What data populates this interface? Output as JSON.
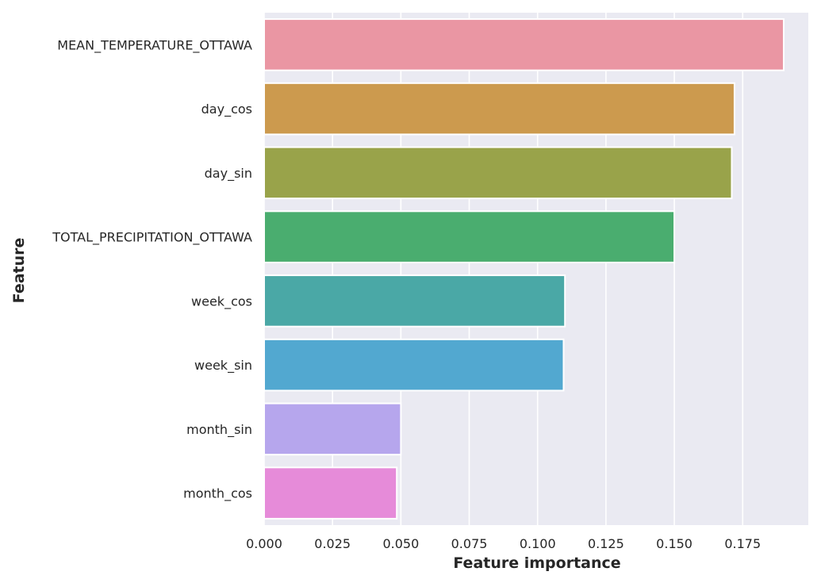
{
  "chart_data": {
    "type": "bar",
    "orientation": "horizontal",
    "title": "",
    "xlabel": "Feature importance",
    "ylabel": "Feature",
    "xlim": [
      0,
      0.199
    ],
    "xticks": [
      0.0,
      0.025,
      0.05,
      0.075,
      0.1,
      0.125,
      0.15,
      0.175
    ],
    "xtick_labels": [
      "0.000",
      "0.025",
      "0.050",
      "0.075",
      "0.100",
      "0.125",
      "0.150",
      "0.175"
    ],
    "grid": true,
    "categories": [
      "MEAN_TEMPERATURE_OTTAWA",
      "day_cos",
      "day_sin",
      "TOTAL_PRECIPITATION_OTTAWA",
      "week_cos",
      "week_sin",
      "month_sin",
      "month_cos"
    ],
    "values": [
      0.19,
      0.172,
      0.171,
      0.15,
      0.11,
      0.1095,
      0.05,
      0.0485
    ],
    "colors": [
      "#ea96a3",
      "#cc9a4e",
      "#99a34a",
      "#4aad6f",
      "#4aa8a6",
      "#52a8d0",
      "#b6a6ed",
      "#e68bd9"
    ],
    "background": "#eaeaf2",
    "grid_color": "#ffffff"
  }
}
